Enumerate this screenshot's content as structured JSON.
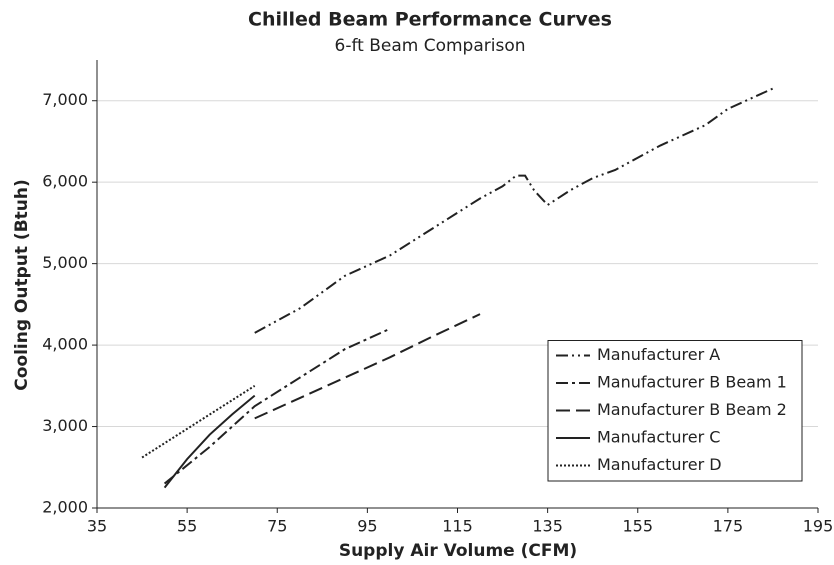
{
  "chart_data": {
    "type": "line",
    "title": "Chilled Beam Performance Curves",
    "subtitle": "6-ft Beam Comparison",
    "xlabel": "Supply Air Volume (CFM)",
    "ylabel": "Cooling Output (Btuh)",
    "xlim": [
      35,
      195
    ],
    "xticks": [
      35,
      55,
      75,
      95,
      115,
      135,
      155,
      175,
      195
    ],
    "ylim": [
      2000,
      7500
    ],
    "yticks": [
      {
        "value": 2000,
        "label": "2,000"
      },
      {
        "value": 3000,
        "label": "3,000"
      },
      {
        "value": 4000,
        "label": "4,000"
      },
      {
        "value": 5000,
        "label": "5,000"
      },
      {
        "value": 6000,
        "label": "6,000"
      },
      {
        "value": 7000,
        "label": "7,000"
      }
    ],
    "grid": true,
    "legend": "lower right",
    "series": [
      {
        "name": "Manufacturer A",
        "color": "#222222",
        "dash": "12 4 2 4 2 4",
        "x": [
          70,
          80,
          90,
          100,
          110,
          120,
          125,
          128,
          130,
          132,
          135,
          140,
          145,
          150,
          160,
          170,
          175,
          185
        ],
        "values": [
          4150,
          4450,
          4850,
          5100,
          5450,
          5800,
          5950,
          6080,
          6080,
          5900,
          5720,
          5900,
          6050,
          6150,
          6450,
          6700,
          6900,
          7150
        ]
      },
      {
        "name": "Manufacturer B Beam 1",
        "color": "#222222",
        "dash": "12 4 3 4",
        "x": [
          50,
          60,
          70,
          80,
          90,
          100
        ],
        "values": [
          2300,
          2750,
          3250,
          3600,
          3950,
          4200
        ]
      },
      {
        "name": "Manufacturer B Beam 2",
        "color": "#222222",
        "dash": "14 6",
        "x": [
          70,
          80,
          90,
          100,
          110,
          120
        ],
        "values": [
          3100,
          3350,
          3600,
          3850,
          4120,
          4380
        ]
      },
      {
        "name": "Manufacturer C",
        "color": "#222222",
        "dash": "none",
        "x": [
          50,
          55,
          60,
          65,
          70
        ],
        "values": [
          2250,
          2600,
          2900,
          3150,
          3380
        ]
      },
      {
        "name": "Manufacturer D",
        "color": "#222222",
        "dash": "2 2",
        "x": [
          45,
          70
        ],
        "values": [
          2620,
          3500
        ]
      }
    ]
  }
}
